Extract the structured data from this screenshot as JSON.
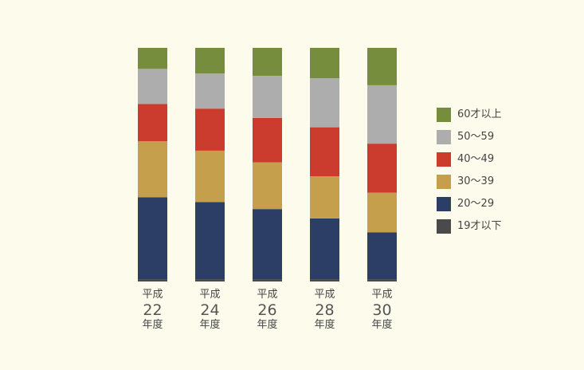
{
  "chart_data": {
    "type": "bar",
    "stacked": true,
    "normalized_percent": true,
    "categories": [
      {
        "pre": "平成",
        "num": "22",
        "post": "年度"
      },
      {
        "pre": "平成",
        "num": "24",
        "post": "年度"
      },
      {
        "pre": "平成",
        "num": "26",
        "post": "年度"
      },
      {
        "pre": "平成",
        "num": "28",
        "post": "年度"
      },
      {
        "pre": "平成",
        "num": "30",
        "post": "年度"
      }
    ],
    "series": [
      {
        "name": "19才以下",
        "color": "#4a4a4a",
        "values": [
          1,
          1,
          1,
          1,
          1
        ]
      },
      {
        "name": "20〜29",
        "color": "#2c3e66",
        "values": [
          35,
          33,
          30,
          26,
          20
        ]
      },
      {
        "name": "30〜39",
        "color": "#c59f4c",
        "values": [
          24,
          22,
          20,
          18,
          17
        ]
      },
      {
        "name": "40〜49",
        "color": "#cb3c2e",
        "values": [
          16,
          18,
          19,
          21,
          21
        ]
      },
      {
        "name": "50〜59",
        "color": "#adadad",
        "values": [
          15,
          15,
          18,
          21,
          25
        ]
      },
      {
        "name": "60才以上",
        "color": "#768d3e",
        "values": [
          9,
          11,
          12,
          13,
          16
        ]
      }
    ],
    "ylim": [
      0,
      100
    ],
    "legend_position": "right",
    "legend_order": [
      "60才以上",
      "50〜59",
      "40〜49",
      "30〜39",
      "20〜29",
      "19才以下"
    ],
    "grid": false
  }
}
